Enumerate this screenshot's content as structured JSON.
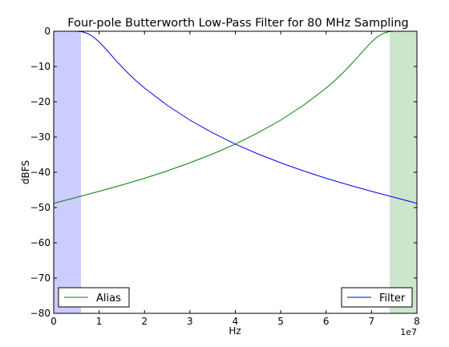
{
  "chart_data": {
    "type": "line",
    "title": "Four-pole Butterworth Low-Pass Filter for 80 MHz Sampling",
    "xlabel": "Hz",
    "ylabel": "dBFS",
    "x_offset_label": "1e7",
    "xlim": [
      0,
      80000000
    ],
    "ylim": [
      -80,
      0
    ],
    "x_ticks": [
      0,
      10000000,
      20000000,
      30000000,
      40000000,
      50000000,
      60000000,
      70000000,
      80000000
    ],
    "x_tick_labels": [
      "0",
      "1",
      "2",
      "3",
      "4",
      "5",
      "6",
      "7",
      "8"
    ],
    "y_ticks": [
      0,
      -10,
      -20,
      -30,
      -40,
      -50,
      -60,
      -70,
      -80
    ],
    "y_tick_labels": [
      "0",
      "−10",
      "−20",
      "−30",
      "−40",
      "−50",
      "−60",
      "−70",
      "−80"
    ],
    "grid": false,
    "bands": [
      {
        "x": [
          0,
          6000000
        ],
        "color": "#0000ff",
        "opacity": 0.2
      },
      {
        "x": [
          74000000,
          80000000
        ],
        "color": "#008000",
        "opacity": 0.2
      }
    ],
    "series": [
      {
        "name": "Filter",
        "color": "#0000ff",
        "x": [
          0,
          2000000,
          4000000,
          5000000,
          6000000,
          7000000,
          8000000,
          9000000,
          10000000,
          12000000,
          14000000,
          16000000,
          18000000,
          20000000,
          25000000,
          30000000,
          35000000,
          40000000,
          45000000,
          50000000,
          55000000,
          60000000,
          65000000,
          70000000,
          75000000,
          80000000
        ],
        "values": [
          0,
          0,
          0,
          0,
          -0.1,
          -0.4,
          -1.0,
          -1.9,
          -3.0,
          -5.8,
          -8.7,
          -11.4,
          -13.9,
          -16.1,
          -21.0,
          -25.2,
          -28.8,
          -32.0,
          -34.8,
          -37.3,
          -39.6,
          -41.7,
          -43.6,
          -45.4,
          -47.1,
          -48.8
        ]
      },
      {
        "name": "Alias",
        "color": "#008000",
        "x": [
          0,
          5000000,
          10000000,
          15000000,
          20000000,
          25000000,
          30000000,
          35000000,
          40000000,
          45000000,
          50000000,
          55000000,
          60000000,
          62000000,
          64000000,
          66000000,
          68000000,
          70000000,
          71000000,
          72000000,
          73000000,
          74000000,
          75000000,
          76000000,
          78000000,
          80000000
        ],
        "values": [
          -48.8,
          -47.1,
          -45.4,
          -43.6,
          -41.7,
          -39.6,
          -37.3,
          -34.8,
          -32.0,
          -28.8,
          -25.2,
          -21.0,
          -16.1,
          -13.9,
          -11.4,
          -8.7,
          -5.8,
          -3.0,
          -1.9,
          -1.0,
          -0.4,
          -0.1,
          0,
          0,
          0,
          0
        ]
      }
    ],
    "legends": [
      {
        "label": "Alias",
        "series": "Alias",
        "placement": "lower-left"
      },
      {
        "label": "Filter",
        "series": "Filter",
        "placement": "lower-right"
      }
    ]
  }
}
